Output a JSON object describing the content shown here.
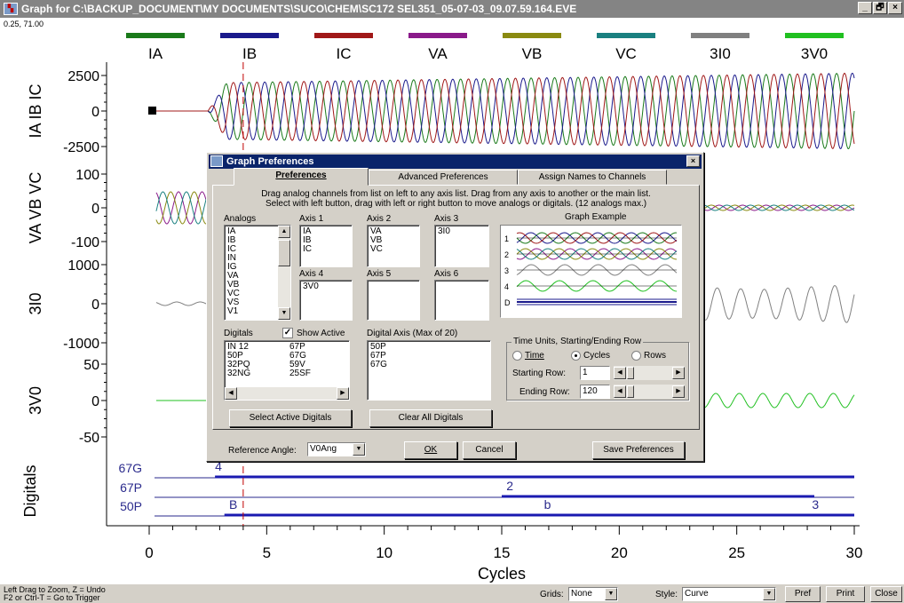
{
  "window": {
    "title": "Graph for C:\\BACKUP_DOCUMENT\\MY DOCUMENTS\\SUCO\\CHEM\\SC172 SEL351_05-07-03_09.07.59.164.EVE",
    "controls": [
      "_",
      "🗗",
      "×"
    ]
  },
  "readout": "0.25, 71.00",
  "legend": [
    {
      "name": "IA",
      "color": "#1a7a1a"
    },
    {
      "name": "IB",
      "color": "#1a1a8c"
    },
    {
      "name": "IC",
      "color": "#a01818"
    },
    {
      "name": "VA",
      "color": "#8a1a8a"
    },
    {
      "name": "VB",
      "color": "#8a8a10"
    },
    {
      "name": "VC",
      "color": "#1a8080"
    },
    {
      "name": "3I0",
      "color": "#808080"
    },
    {
      "name": "3V0",
      "color": "#20c020"
    }
  ],
  "chart_data": {
    "type": "line",
    "xlabel": "Cycles",
    "xlim": [
      0,
      30
    ],
    "x_ticks": [
      "0",
      "5",
      "10",
      "15",
      "20",
      "25",
      "30"
    ],
    "trigger_cycle": 4,
    "axes": [
      {
        "label": "IA IB IC",
        "ticks": [
          "2500",
          "0",
          "-2500"
        ],
        "ylim": [
          -2500,
          2500
        ]
      },
      {
        "label": "VA VB VC",
        "ticks": [
          "100",
          "0",
          "-100"
        ],
        "ylim": [
          -100,
          100
        ]
      },
      {
        "label": "3I0",
        "ticks": [
          "1000",
          "0",
          "-1000"
        ],
        "ylim": [
          -1000,
          1000
        ]
      },
      {
        "label": "3V0",
        "ticks": [
          "50",
          "0",
          "-50"
        ],
        "ylim": [
          -50,
          50
        ]
      }
    ],
    "digitals_label": "Digitals",
    "digital_rows": [
      {
        "name": "67G",
        "on_from": 2.8,
        "on_to": 30
      },
      {
        "name": "67P",
        "on_from": 15,
        "on_to": 28.3
      },
      {
        "name": "50P",
        "on_from": 3.2,
        "on_to": 30
      }
    ],
    "digital_markers": [
      "4",
      "2",
      "B",
      "b",
      "3"
    ]
  },
  "dialog": {
    "title": "Graph Preferences",
    "close": "×",
    "tabs": [
      "Preferences",
      "Advanced Preferences",
      "Assign Names to Channels"
    ],
    "instructions": [
      "Drag analog channels from list on left to any axis list. Drag from any axis to another or the main list.",
      "Select with left button, drag with left or right button to move analogs or digitals. (12 analogs max.)"
    ],
    "analogs_label": "Analogs",
    "analogs": [
      "IA",
      "IB",
      "IC",
      "IN",
      "IG",
      "VA",
      "VB",
      "VC",
      "VS",
      "V1"
    ],
    "axes": [
      {
        "label": "Axis 1",
        "items": [
          "IA",
          "IB",
          "IC"
        ]
      },
      {
        "label": "Axis 2",
        "items": [
          "VA",
          "VB",
          "VC"
        ]
      },
      {
        "label": "Axis 3",
        "items": [
          "3I0"
        ]
      },
      {
        "label": "Axis 4",
        "items": [
          "3V0"
        ]
      },
      {
        "label": "Axis 5",
        "items": []
      },
      {
        "label": "Axis 6",
        "items": []
      }
    ],
    "graph_example_label": "Graph Example",
    "example_rows": [
      "1",
      "2",
      "3",
      "4",
      "D"
    ],
    "digitals_label": "Digitals",
    "show_active_label": "Show Active",
    "show_active_checked": true,
    "digitals_col1": [
      "IN 12",
      "50P",
      "32PQ",
      "32NG"
    ],
    "digitals_col2": [
      "67P",
      "67G",
      "59V",
      "25SF"
    ],
    "digital_axis_label": "Digital Axis (Max of 20)",
    "digital_axis_items": [
      "50P",
      "67P",
      "67G"
    ],
    "select_active_button": "Select Active Digitals",
    "clear_all_button": "Clear All Digitals",
    "time_group_label": "Time Units, Starting/Ending Row",
    "radio_time": "Time",
    "radio_cycles": "Cycles",
    "radio_rows": "Rows",
    "selected_unit": "Cycles",
    "starting_row_label": "Starting Row:",
    "starting_row": "1",
    "ending_row_label": "Ending Row:",
    "ending_row": "120",
    "reference_angle_label": "Reference Angle:",
    "reference_angle": "V0Ang",
    "ok": "OK",
    "cancel": "Cancel",
    "save": "Save Preferences"
  },
  "status": {
    "hint_line1": "Left Drag to Zoom, Z = Undo",
    "hint_line2": "F2 or Ctrl-T = Go to Trigger",
    "grids_label": "Grids:",
    "grids_value": "None",
    "style_label": "Style:",
    "style_value": "Curve",
    "pref_button": "Pref",
    "print_button": "Print",
    "close_button": "Close"
  }
}
